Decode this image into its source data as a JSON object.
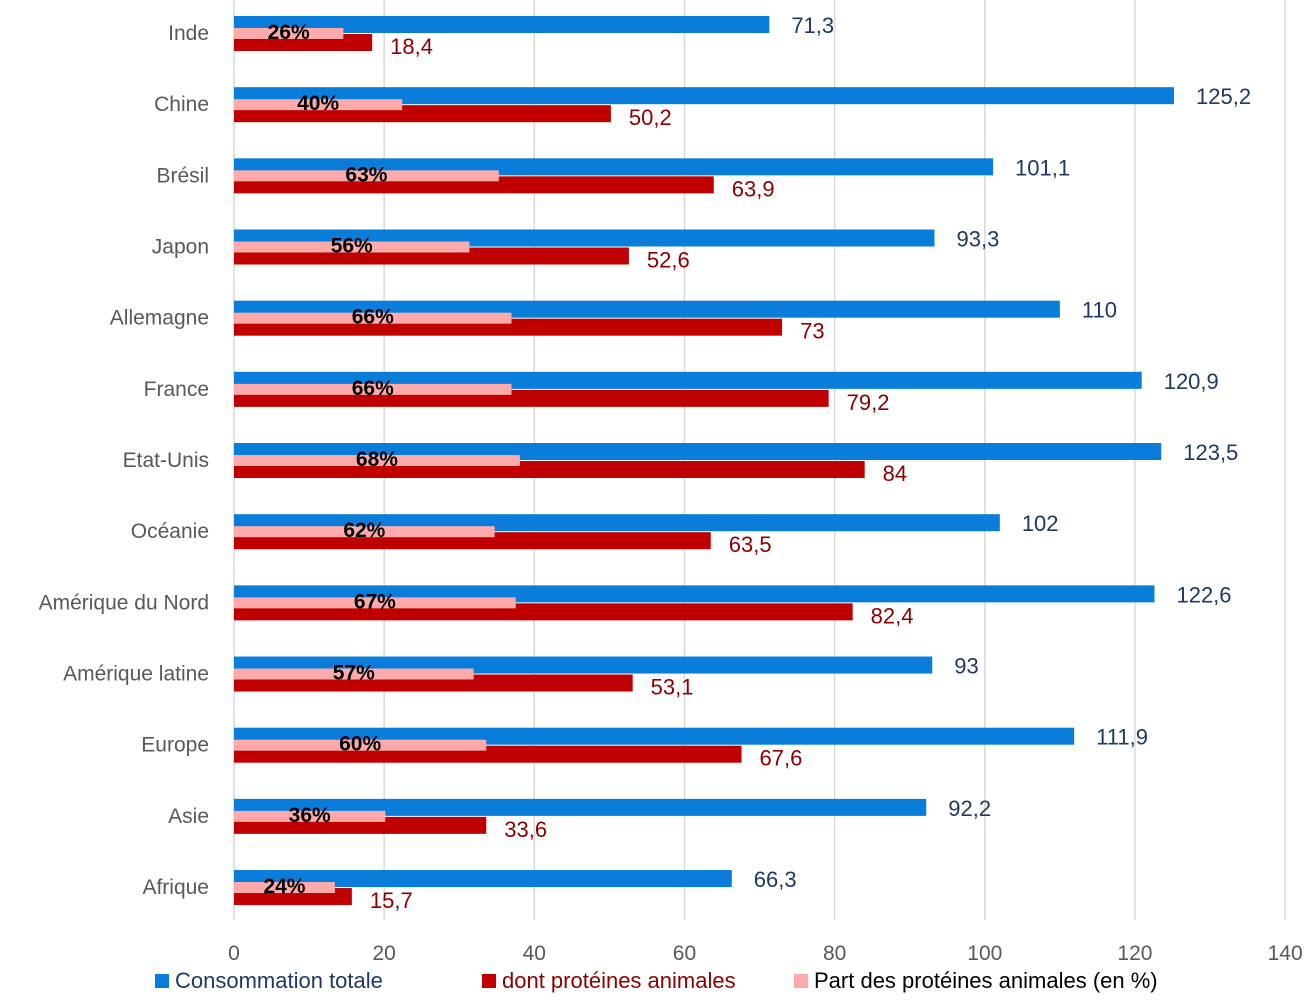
{
  "chart_data": {
    "type": "bar",
    "orientation": "horizontal",
    "title": "",
    "xlabel": "",
    "ylabel": "",
    "xlim": [
      0,
      140
    ],
    "xticks": [
      0,
      20,
      40,
      60,
      80,
      100,
      120,
      140
    ],
    "grid": true,
    "legend_position": "bottom",
    "categories": [
      "Inde",
      "Chine",
      "Brésil",
      "Japon",
      "Allemagne",
      "France",
      "Etat-Unis",
      "Océanie",
      "Amérique du Nord",
      "Amérique latine",
      "Europe",
      "Asie",
      "Afrique"
    ],
    "series": [
      {
        "name": "Consommation totale",
        "color": "#0a7ddb",
        "label_color": "#1f3864",
        "values": [
          71.3,
          125.2,
          101.1,
          93.3,
          110,
          120.9,
          123.5,
          102,
          122.6,
          93,
          111.9,
          92.2,
          66.3
        ],
        "labels": [
          "71,3",
          "125,2",
          "101,1",
          "93,3",
          "110",
          "120,9",
          "123,5",
          "102",
          "122,6",
          "93",
          "111,9",
          "92,2",
          "66,3"
        ]
      },
      {
        "name": "dont protéines animales",
        "color": "#c00000",
        "label_color": "#8b0000",
        "values": [
          18.4,
          50.2,
          63.9,
          52.6,
          73,
          79.2,
          84,
          63.5,
          82.4,
          53.1,
          67.6,
          33.6,
          15.7
        ],
        "labels": [
          "18,4",
          "50,2",
          "63,9",
          "52,6",
          "73",
          "79,2",
          "84",
          "63,5",
          "82,4",
          "53,1",
          "67,6",
          "33,6",
          "15,7"
        ]
      },
      {
        "name": "Part des protéines animales (en %)",
        "color": "#ffaaaa",
        "label_color": "#000000",
        "axis": "secondary",
        "values": [
          26,
          40,
          63,
          56,
          66,
          66,
          68,
          62,
          67,
          57,
          60,
          36,
          24
        ],
        "labels": [
          "26%",
          "40%",
          "63%",
          "56%",
          "66%",
          "66%",
          "68%",
          "62%",
          "67%",
          "57%",
          "60%",
          "36%",
          "24%"
        ]
      }
    ]
  },
  "legend": {
    "items": [
      {
        "label": "Consommation totale",
        "color": "#0a7ddb",
        "text_color": "#1f3864"
      },
      {
        "label": "dont protéines animales",
        "color": "#c00000",
        "text_color": "#8b0000"
      },
      {
        "label": "Part des protéines animales (en %)",
        "color": "#ffaaaa",
        "text_color": "#000000"
      }
    ]
  }
}
